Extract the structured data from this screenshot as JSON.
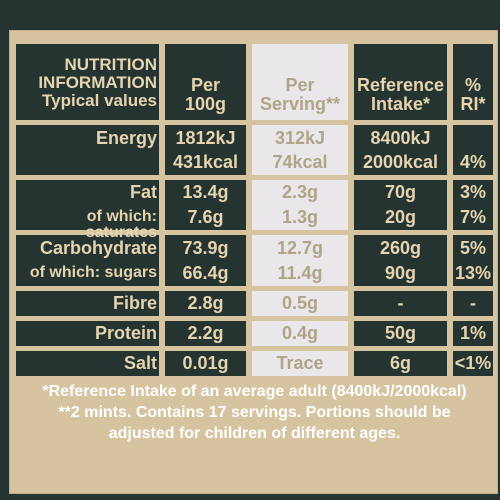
{
  "header": {
    "nutrition_info": [
      "NUTRITION",
      "INFORMATION",
      "Typical values"
    ],
    "per_100g": [
      "Per",
      "100g"
    ],
    "per_serving": [
      "Per",
      "Serving**"
    ],
    "reference_intake": [
      "Reference",
      "Intake*"
    ],
    "percent_ri": [
      "%",
      "RI*"
    ]
  },
  "rows": [
    {
      "label": "Energy",
      "per100g": "1812kJ",
      "serving": "312kJ",
      "ri": "8400kJ",
      "pct": ""
    },
    {
      "label": "",
      "per100g": "431kcal",
      "serving": "74kcal",
      "ri": "2000kcal",
      "pct": "4%"
    },
    {
      "label": "Fat",
      "per100g": "13.4g",
      "serving": "2.3g",
      "ri": "70g",
      "pct": "3%"
    },
    {
      "label": "of which: saturates",
      "per100g": "7.6g",
      "serving": "1.3g",
      "ri": "20g",
      "pct": "7%"
    },
    {
      "label": "Carbohydrate",
      "per100g": "73.9g",
      "serving": "12.7g",
      "ri": "260g",
      "pct": "5%"
    },
    {
      "label": "of which: sugars",
      "per100g": "66.4g",
      "serving": "11.4g",
      "ri": "90g",
      "pct": "13%"
    },
    {
      "label": "Fibre",
      "per100g": "2.8g",
      "serving": "0.5g",
      "ri": "-",
      "pct": "-"
    },
    {
      "label": "Protein",
      "per100g": "2.2g",
      "serving": "0.4g",
      "ri": "50g",
      "pct": "1%"
    },
    {
      "label": "Salt",
      "per100g": "0.01g",
      "serving": "Trace",
      "ri": "6g",
      "pct": "<1%"
    }
  ],
  "footnotes": [
    "*Reference Intake of an average adult (8400kJ/2000kcal)",
    "**2 mints. Contains 17 servings. Portions should be",
    "adjusted for children of different ages."
  ]
}
